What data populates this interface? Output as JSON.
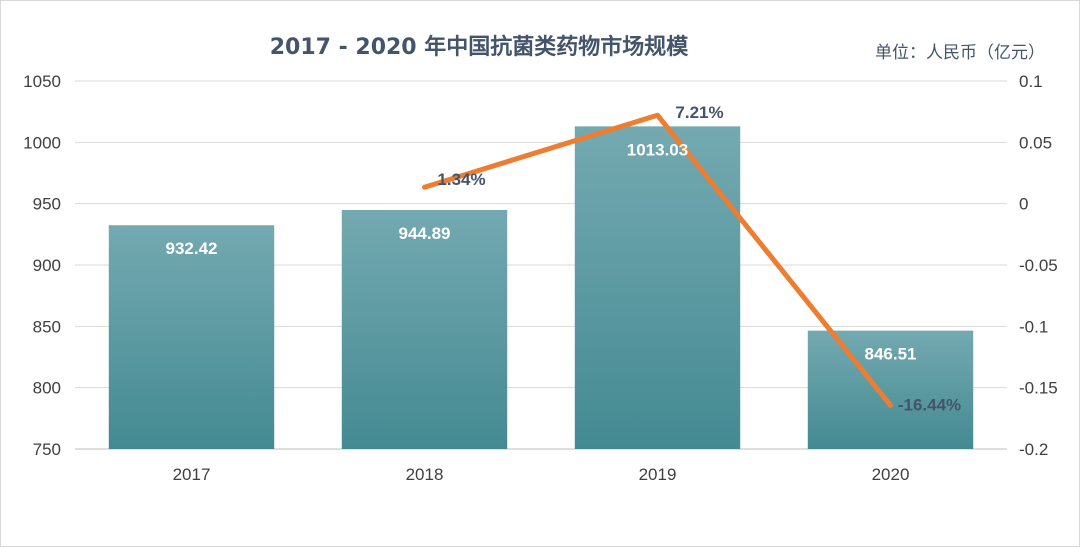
{
  "chart_data": {
    "type": "bar",
    "title": "2017 - 2020 年中国抗菌类药物市场规模",
    "unit_label": "单位：人民币（亿元）",
    "categories": [
      "2017",
      "2018",
      "2019",
      "2020"
    ],
    "series": [
      {
        "type": "bar",
        "values": [
          932.42,
          944.89,
          1013.03,
          846.51
        ],
        "labels": [
          "932.42",
          "944.89",
          "1013.03",
          "846.51"
        ],
        "color": "#5a9ea6",
        "axis": "left"
      },
      {
        "type": "line",
        "x": [
          "2018",
          "2019",
          "2020"
        ],
        "values": [
          0.0134,
          0.0721,
          -0.1644
        ],
        "labels": [
          "1.34%",
          "7.21%",
          "-16.44%"
        ],
        "color": "#ed7d31",
        "axis": "right"
      }
    ],
    "y_left": {
      "min": 750,
      "max": 1050,
      "ticks": [
        750,
        800,
        850,
        900,
        950,
        1000,
        1050
      ],
      "tick_labels": [
        "750",
        "800",
        "850",
        "900",
        "950",
        "1000",
        "1050"
      ]
    },
    "y_right": {
      "min": -0.2,
      "max": 0.1,
      "ticks": [
        -0.2,
        -0.15,
        -0.1,
        -0.05,
        0,
        0.05,
        0.1
      ],
      "tick_labels": [
        "-0.2",
        "-0.15",
        "-0.1",
        "-0.05",
        "0",
        "0.05",
        "0.1"
      ]
    },
    "grid": true,
    "legend": "none"
  }
}
